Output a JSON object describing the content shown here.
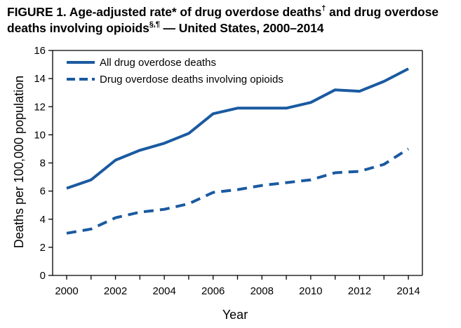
{
  "chart_data": {
    "type": "line",
    "title": {
      "part1": "FIGURE 1. Age-adjusted rate* of drug overdose deaths",
      "mark1": "†",
      "part2": " and drug overdose deaths involving opioids",
      "mark2": "§,¶",
      "part3": " — United States, 2000–2014"
    },
    "xlabel": "Year",
    "ylabel": "Deaths per 100,000 population",
    "x": [
      2000,
      2001,
      2002,
      2003,
      2004,
      2005,
      2006,
      2007,
      2008,
      2009,
      2010,
      2011,
      2012,
      2013,
      2014
    ],
    "xlim": [
      2000,
      2014
    ],
    "ylim": [
      0,
      16
    ],
    "x_ticks": [
      "2000",
      "2002",
      "2004",
      "2006",
      "2008",
      "2010",
      "2012",
      "2014"
    ],
    "y_ticks": [
      "0",
      "2",
      "4",
      "6",
      "8",
      "10",
      "12",
      "14",
      "16"
    ],
    "grid": false,
    "legend_position": "top-left",
    "series": [
      {
        "name": "All drug overdose deaths",
        "style": "solid",
        "color": "#1a5aa1",
        "values": [
          6.2,
          6.8,
          8.2,
          8.9,
          9.4,
          10.1,
          11.5,
          11.9,
          11.9,
          11.9,
          12.3,
          13.2,
          13.1,
          13.8,
          14.7
        ]
      },
      {
        "name": "Drug overdose deaths involving opioids",
        "style": "dashed",
        "color": "#1a5aa1",
        "values": [
          3.0,
          3.3,
          4.1,
          4.5,
          4.7,
          5.1,
          5.9,
          6.1,
          6.4,
          6.6,
          6.8,
          7.3,
          7.4,
          7.9,
          9.0
        ]
      }
    ]
  }
}
